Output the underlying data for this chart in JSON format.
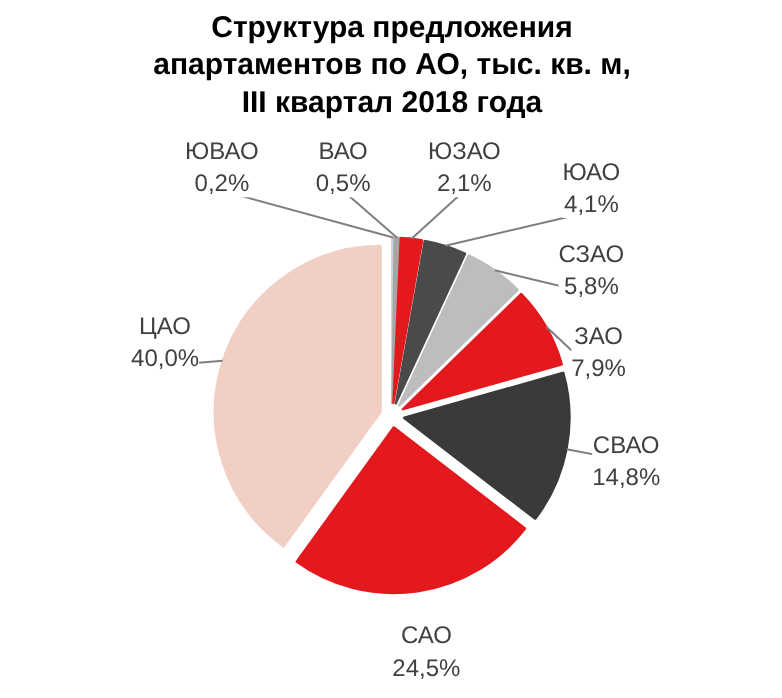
{
  "chart_data": {
    "type": "pie",
    "title": "Структура предложения\nапартаментов по АО, тыс. кв. м,\nIII квартал 2018 года",
    "categories": [
      "ЮВАО",
      "ВАО",
      "ЮЗАО",
      "ЮАО",
      "СЗАО",
      "ЗАО",
      "СВАО",
      "САО",
      "ЦАО"
    ],
    "values": [
      0.2,
      0.5,
      2.1,
      4.1,
      5.8,
      7.9,
      14.8,
      24.5,
      40.0
    ],
    "colors": [
      "#d0d0d0",
      "#a6a6a6",
      "#e3191e",
      "#4a4a4a",
      "#bdbdbd",
      "#e3191e",
      "#3a3a3a",
      "#e3191e",
      "#f2cfc4"
    ],
    "value_labels": [
      "0,2%",
      "0,5%",
      "2,1%",
      "4,1%",
      "5,8%",
      "7,9%",
      "14,8%",
      "24,5%",
      "40,0%"
    ]
  }
}
